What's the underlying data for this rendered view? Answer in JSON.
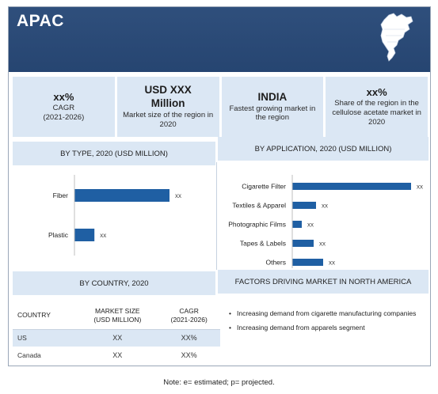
{
  "header": {
    "title": "APAC"
  },
  "kpis": [
    {
      "value": "xx%",
      "label": "CAGR\n(2021-2026)"
    },
    {
      "value": "USD XXX\nMillion",
      "label": "Market size of the region in 2020"
    },
    {
      "value": "INDIA",
      "label": "Fastest growing market in the region"
    },
    {
      "value": "xx%",
      "label": "Share of the region in the cellulose acetate market in 2020"
    }
  ],
  "panels": {
    "by_type_title": "BY TYPE, 2020 (USD MILLION)",
    "by_application_title": "BY APPLICATION, 2020 (USD MILLION)",
    "by_country_title": "BY COUNTRY, 2020",
    "factors_title": "FACTORS DRIVING MARKET IN NORTH AMERICA"
  },
  "chart_data": [
    {
      "type": "bar",
      "orientation": "horizontal",
      "title": "BY TYPE, 2020 (USD MILLION)",
      "categories": [
        "Fiber",
        "Plastic"
      ],
      "values": [
        100,
        21
      ],
      "data_labels": [
        "xx",
        "xx"
      ],
      "color": "#1f5fa3"
    },
    {
      "type": "bar",
      "orientation": "horizontal",
      "title": "BY APPLICATION, 2020 (USD MILLION)",
      "categories": [
        "Cigarette Filter",
        "Textiles & Apparel",
        "Photographic Films",
        "Tapes & Labels",
        "Others"
      ],
      "values": [
        100,
        20,
        8,
        18,
        26
      ],
      "data_labels": [
        "xx",
        "xx",
        "xx",
        "xx",
        "xx"
      ],
      "color": "#1f5fa3"
    }
  ],
  "country_table": {
    "headers": [
      "COUNTRY",
      "MARKET SIZE\n(USD MILLION)",
      "CAGR\n(2021-2026)"
    ],
    "rows": [
      [
        "US",
        "XX",
        "XX%"
      ],
      [
        "Canada",
        "XX",
        "XX%"
      ]
    ]
  },
  "factors": [
    "Increasing demand from cigarette manufacturing companies",
    "Increasing demand from apparels segment"
  ],
  "note": "Note: e= estimated; p= projected.",
  "colors": {
    "header_bg": "#2f4f7c",
    "panel_bg": "#dbe7f4",
    "bar": "#1f5fa3"
  }
}
